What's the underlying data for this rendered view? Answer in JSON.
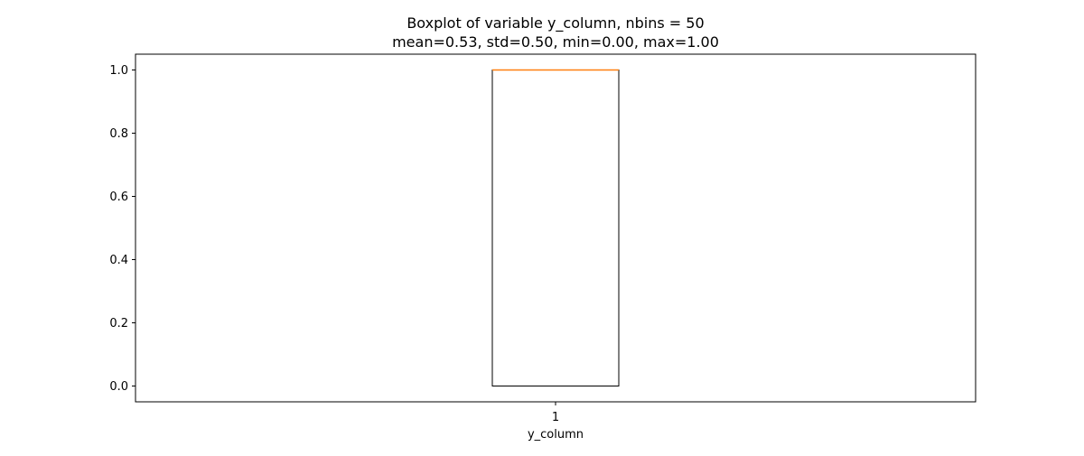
{
  "chart_data": {
    "type": "boxplot",
    "title_line1": "Boxplot of variable y_column, nbins = 50",
    "title_line2": "mean=0.53, std=0.50, min=0.00, max=1.00",
    "xlabel": "y_column",
    "ylabel": "",
    "categories": [
      "1"
    ],
    "ylim": [
      -0.05,
      1.05
    ],
    "yticks": [
      0.0,
      0.2,
      0.4,
      0.6,
      0.8,
      1.0
    ],
    "ytick_labels": [
      "0.0",
      "0.2",
      "0.4",
      "0.6",
      "0.8",
      "1.0"
    ],
    "boxes": [
      {
        "category": "1",
        "whisker_low": 0.0,
        "q1": 0.0,
        "median": 1.0,
        "q3": 1.0,
        "whisker_high": 1.0
      }
    ],
    "grid": false,
    "legend": "none",
    "colors": {
      "box": "#000000",
      "median": "#ff7f0e",
      "axes": "#000000"
    }
  }
}
